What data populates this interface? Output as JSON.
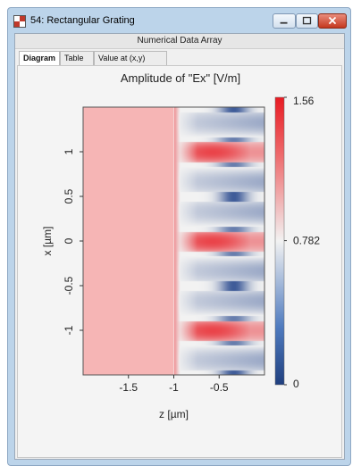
{
  "window": {
    "title": "54: Rectangular Grating"
  },
  "header": {
    "label": "Numerical Data Array"
  },
  "tabs": [
    {
      "label": "Diagram",
      "active": true
    },
    {
      "label": "Table",
      "active": false
    },
    {
      "label": "Value at (x,y)",
      "active": false
    }
  ],
  "chart_data": {
    "type": "heatmap",
    "title": "Amplitude of \"Ex\"  [V/m]",
    "xlabel": "z [µm]",
    "ylabel": "x [µm]",
    "xlim": [
      -2,
      0
    ],
    "ylim": [
      -1.5,
      1.5
    ],
    "x_ticks": [
      -1.5,
      -1,
      -0.5
    ],
    "y_ticks": [
      -1,
      -0.5,
      0,
      0.5,
      1
    ],
    "x_tick_labels": [
      "-1.5",
      "-1",
      "-0.5"
    ],
    "y_tick_labels": [
      "-1",
      "-0.5",
      "0",
      "0.5",
      "1"
    ],
    "colorbar": {
      "min": 0,
      "mid": 0.782,
      "max": 1.56,
      "labels": [
        "1.56",
        "0.782",
        "0"
      ]
    },
    "uniform_region": {
      "z_range": [
        -2,
        -1
      ],
      "value": 0.95
    },
    "grating_period": 1,
    "grating_high_index_centers_x": [
      1,
      0,
      -1
    ],
    "colors": {
      "low": "#2b4b8f",
      "mid": "#f2f2f2",
      "high": "#e8232a",
      "uniform": "#f6b5b5"
    }
  }
}
